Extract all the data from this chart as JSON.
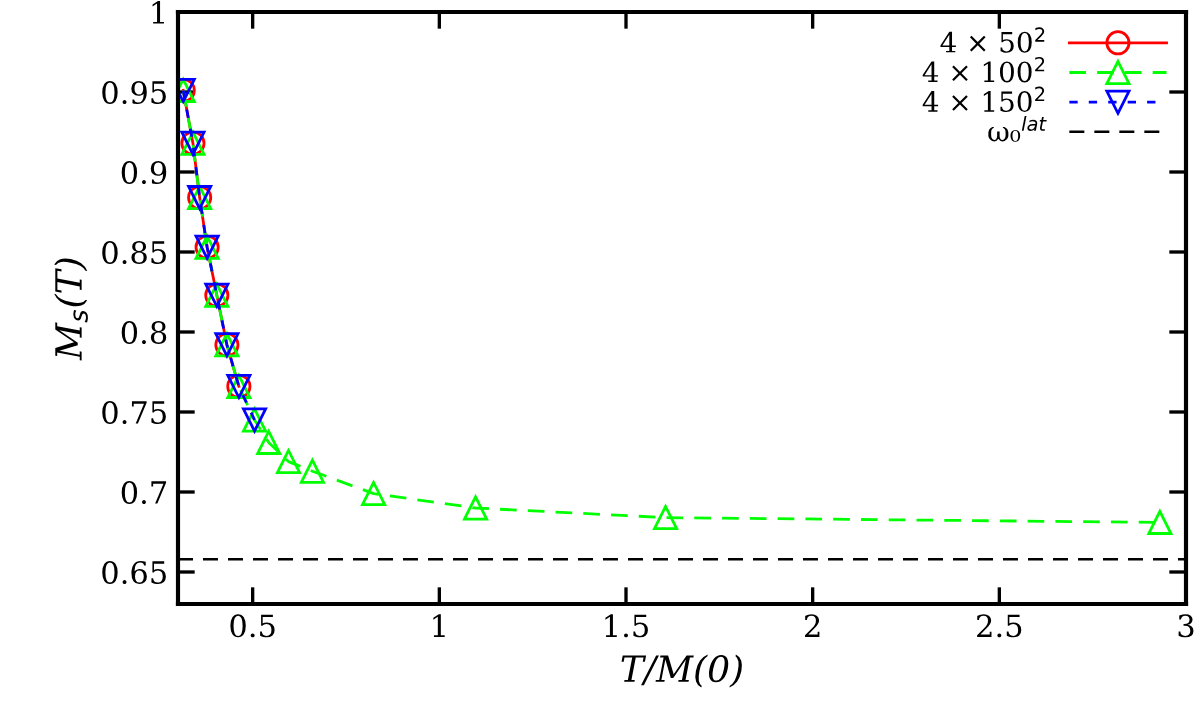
{
  "chart_data": {
    "type": "line",
    "xlabel": "T/M(0)",
    "ylabel": "M$_{s}$(T)",
    "xlim": [
      0.3,
      3
    ],
    "ylim": [
      0.63,
      1
    ],
    "xticks": [
      0.5,
      1,
      1.5,
      2,
      2.5,
      3
    ],
    "yticks": [
      0.65,
      0.7,
      0.75,
      0.8,
      0.85,
      0.9,
      0.95,
      1
    ],
    "grid": false,
    "legend": "top right",
    "series": [
      {
        "name": "4 × 50$^{2}$",
        "color": "#ff0000",
        "marker": "circle",
        "line_style": "solid",
        "x": [
          0.314,
          0.34,
          0.358,
          0.378,
          0.404,
          0.431,
          0.463
        ],
        "values": [
          0.951,
          0.918,
          0.884,
          0.853,
          0.823,
          0.792,
          0.766
        ]
      },
      {
        "name": "4 × 100$^{2}$",
        "color": "#00ff00",
        "marker": "triangle",
        "line_style": "dashed",
        "x": [
          0.314,
          0.34,
          0.358,
          0.378,
          0.404,
          0.431,
          0.463,
          0.505,
          0.543,
          0.596,
          0.66,
          0.824,
          1.097,
          1.606,
          2.93
        ],
        "values": [
          0.951,
          0.918,
          0.884,
          0.853,
          0.823,
          0.792,
          0.766,
          0.745,
          0.731,
          0.719,
          0.713,
          0.699,
          0.69,
          0.684,
          0.681
        ]
      },
      {
        "name": "4 × 150$^{2}$",
        "color": "#0000ff",
        "marker": "triangle_down",
        "line_style": "dotted",
        "x": [
          0.314,
          0.34,
          0.358,
          0.378,
          0.404,
          0.431,
          0.463,
          0.505
        ],
        "values": [
          0.951,
          0.918,
          0.884,
          0.853,
          0.823,
          0.792,
          0.766,
          0.745
        ]
      }
    ],
    "ref_lines": [
      {
        "axis": "y",
        "value": 0.658,
        "label": "ω₀$^{lat}$",
        "color": "#000000",
        "line_style": "dashed"
      }
    ]
  }
}
